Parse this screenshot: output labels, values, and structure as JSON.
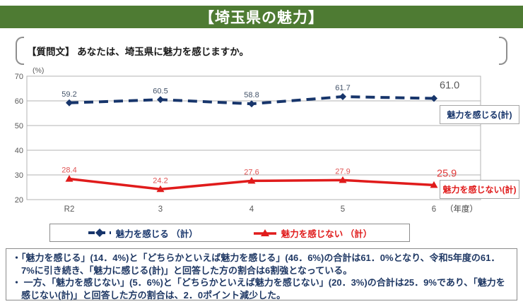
{
  "header": {
    "title": "【埼玉県の魅力】",
    "bg_color": "#4e7b33"
  },
  "question": {
    "text": "【質問文】 あなたは、埼玉県に魅力を感じますか。"
  },
  "chart_data": {
    "type": "line",
    "categories": [
      "R2",
      "3",
      "4",
      "5",
      "6"
    ],
    "x_axis_suffix": "（年度）",
    "y_unit_label": "(%)",
    "ylim": [
      20,
      70
    ],
    "yticks": [
      20,
      30,
      40,
      50,
      60,
      70
    ],
    "grid": true,
    "legend_position": "bottom",
    "series": [
      {
        "name": "魅力を感じる（計）",
        "values": [
          59.2,
          60.5,
          58.8,
          61.7,
          61.0
        ],
        "color": "#17356b",
        "label_color": "#44546a",
        "last_label_color": "#595959",
        "style": "dashed",
        "marker": "diamond",
        "box_label": "魅力を感じる(計)"
      },
      {
        "name": "魅力を感じない（計）",
        "values": [
          28.4,
          24.2,
          27.6,
          27.9,
          25.9
        ],
        "color": "#e01b1b",
        "label_color": "#e05555",
        "last_label_color": "#e03a3a",
        "style": "solid",
        "marker": "triangle",
        "box_label": "魅力を感じない(計)"
      }
    ]
  },
  "legend": {
    "items": [
      {
        "label": "魅力を感じる （計）",
        "color": "#17356b"
      },
      {
        "label": "魅力を感じない （計）",
        "color": "#e01b1b"
      }
    ]
  },
  "notes": {
    "items": [
      "・「魅力を感じる」(14．4%)と「どちらかといえば魅力を感じる」(46．6%)の合計は61．0%となり、令和5年度の61．7%に引き続き、「魅力に感じる(計)」と回答した方の割合は6割強となっている。",
      "・ 一方、「魅力を感じない」(5．6%)と「どちらかといえば魅力を感じない」(20．3%)の合計は25．9%であり、「魅力を感じない(計)」と回答した方の割合は、2．0ポイント減少した。"
    ]
  }
}
